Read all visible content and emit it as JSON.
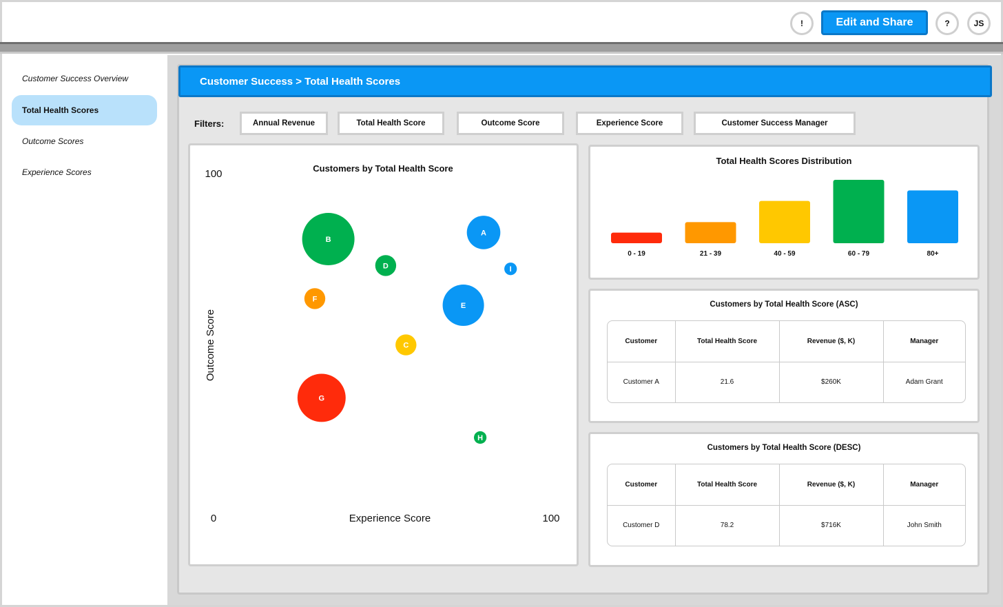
{
  "header": {
    "alert_icon": "!",
    "edit_share_label": "Edit and Share",
    "help_icon": "?",
    "avatar_initials": "JS"
  },
  "sidebar": {
    "items": [
      {
        "label": "Customer Success Overview",
        "active": false
      },
      {
        "label": "Total Health Scores",
        "active": true
      },
      {
        "label": "Outcome Scores",
        "active": false
      },
      {
        "label": "Experience Scores",
        "active": false
      }
    ]
  },
  "main": {
    "breadcrumb": "Customer Success > Total Health Scores",
    "filters_label": "Filters:",
    "filters": [
      "Annual Revenue",
      "Total Health Score",
      "Outcome Score",
      "Experience Score",
      "Customer Success Manager"
    ]
  },
  "colors": {
    "accent_blue": "#0a97f5",
    "green": "#00b04f",
    "orange": "#ff9800",
    "yellow": "#ffc800",
    "red": "#ff2b0b"
  },
  "chart_data": [
    {
      "type": "scatter",
      "title": "Customers by Total Health Score",
      "xlabel": "Experience Score",
      "ylabel": "Outcome Score",
      "xlim": [
        0,
        100
      ],
      "ylim": [
        0,
        100
      ],
      "x_tick_labels": [
        "0",
        "100"
      ],
      "y_tick_labels": [
        "100"
      ],
      "points": [
        {
          "label": "A",
          "x": 80,
          "y": 82,
          "size": 0.64,
          "color": "#0a97f5"
        },
        {
          "label": "B",
          "x": 34,
          "y": 80,
          "size": 1.0,
          "color": "#00b04f"
        },
        {
          "label": "C",
          "x": 57,
          "y": 48,
          "size": 0.4,
          "color": "#ffc800"
        },
        {
          "label": "D",
          "x": 51,
          "y": 72,
          "size": 0.4,
          "color": "#00b04f"
        },
        {
          "label": "E",
          "x": 74,
          "y": 60,
          "size": 0.79,
          "color": "#0a97f5"
        },
        {
          "label": "F",
          "x": 30,
          "y": 62,
          "size": 0.4,
          "color": "#ff9800"
        },
        {
          "label": "G",
          "x": 32,
          "y": 32,
          "size": 0.92,
          "color": "#ff2b0b"
        },
        {
          "label": "H",
          "x": 79,
          "y": 20,
          "size": 0.24,
          "color": "#00b04f"
        },
        {
          "label": "I",
          "x": 88,
          "y": 71,
          "size": 0.24,
          "color": "#0a97f5"
        }
      ]
    },
    {
      "type": "bar",
      "title": "Total Health Scores Distribution",
      "categories": [
        "0 - 19",
        "21 - 39",
        "40 - 59",
        "60 - 79",
        "80+"
      ],
      "values": [
        1,
        2,
        4,
        6,
        5
      ],
      "colors": [
        "#ff2b0b",
        "#ff9800",
        "#ffc800",
        "#00b04f",
        "#0a97f5"
      ]
    }
  ],
  "asc_table": {
    "title": "Customers by Total Health Score (ASC)",
    "headers": [
      "Customer",
      "Total Health Score",
      "Revenue ($, K)",
      "Manager"
    ],
    "rows": [
      [
        "Customer A",
        "21.6",
        "$260K",
        "Adam Grant"
      ]
    ]
  },
  "desc_table": {
    "title": "Customers by Total Health Score (DESC)",
    "headers": [
      "Customer",
      "Total Health Score",
      "Revenue ($, K)",
      "Manager"
    ],
    "rows": [
      [
        "Customer D",
        "78.2",
        "$716K",
        "John Smith"
      ]
    ]
  }
}
